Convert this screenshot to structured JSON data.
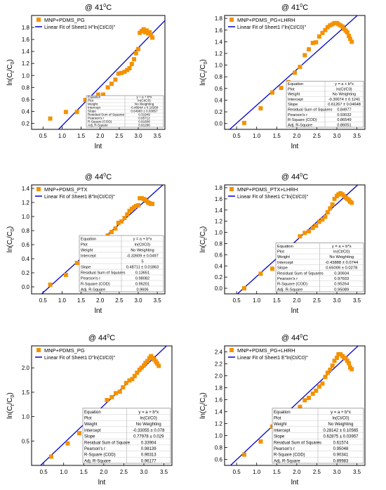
{
  "colors": {
    "marker": "#f39200",
    "fit_line": "#0000cc",
    "axis": "#000000"
  },
  "chart_data": [
    {
      "type": "scatter",
      "title": "@ 41°C",
      "xlabel": "lnt",
      "ylabel": "ln(Ct/C0)",
      "xlim": [
        0.2,
        3.7
      ],
      "ylim": [
        0.1,
        2.0
      ],
      "xticks": [
        0.5,
        1.0,
        1.5,
        2.0,
        2.5,
        3.0,
        3.5
      ],
      "yticks": [
        0.2,
        0.4,
        0.6,
        0.8,
        1.0,
        1.2,
        1.4,
        1.6,
        1.8
      ],
      "legend": [
        "MNP+PDMS_PG",
        "Linear Fit of Sheet1 H\"ln(Ct/C0)\""
      ],
      "fit": {
        "a": -0.48944,
        "b": 0.64983
      },
      "series": [
        {
          "x": [
            0.69,
            1.1,
            1.39,
            1.61,
            1.79,
            1.95,
            2.08,
            2.2,
            2.3,
            2.4,
            2.48,
            2.56,
            2.64,
            2.71,
            2.77,
            2.83,
            2.89,
            2.94,
            3.0,
            3.04,
            3.09,
            3.14,
            3.18,
            3.22,
            3.26,
            3.3,
            3.33,
            3.37
          ],
          "y": [
            0.28,
            0.39,
            0.39,
            0.59,
            0.61,
            0.68,
            0.68,
            0.8,
            0.86,
            0.93,
            1.03,
            1.04,
            1.06,
            1.09,
            1.12,
            1.19,
            1.27,
            1.37,
            1.44,
            1.71,
            1.74,
            1.77,
            1.72,
            1.75,
            1.7,
            1.72,
            1.67,
            1.63
          ]
        }
      ],
      "stats": [
        [
          "Equation",
          "y = a + b*x"
        ],
        [
          "Plot",
          "ln(Ct/C0)"
        ],
        [
          "Weight",
          "No Weighting"
        ],
        [
          "Intercept",
          "-0.48944 ± 0.10268"
        ],
        [
          "Slope",
          "0.64983 ± 0.03857"
        ],
        [
          "Residual Sum of Squares",
          "0.31949"
        ],
        [
          "Pearson's r",
          "0.95712"
        ],
        [
          "R-Square (COD)",
          "0.91608"
        ],
        [
          "Adj. R-Square",
          "0.91286"
        ]
      ]
    },
    {
      "type": "scatter",
      "title": "@ 41°C",
      "xlabel": "lnt",
      "ylabel": "ln(Ct/C0)",
      "xlim": [
        0.2,
        3.7
      ],
      "ylim": [
        -0.1,
        1.85
      ],
      "xticks": [
        0.5,
        1.0,
        1.5,
        2.0,
        2.5,
        3.0,
        3.5
      ],
      "yticks": [
        0.0,
        0.2,
        0.4,
        0.6,
        0.8,
        1.0,
        1.2,
        1.4,
        1.6,
        1.8
      ],
      "legend": [
        "MNP+PDMS_PG+LHRH",
        "Linear Fit of Sheet1 I\"ln(Ct/C0)\""
      ],
      "fit": {
        "a": -0.30074,
        "b": 0.61267
      },
      "series": [
        {
          "x": [
            0.69,
            1.1,
            1.39,
            1.61,
            1.79,
            1.95,
            2.08,
            2.2,
            2.3,
            2.4,
            2.48,
            2.56,
            2.64,
            2.71,
            2.77,
            2.83,
            2.89,
            2.94,
            3.0,
            3.04,
            3.09,
            3.14,
            3.18,
            3.22,
            3.26,
            3.3,
            3.33,
            3.37
          ],
          "y": [
            0.01,
            0.26,
            0.53,
            0.61,
            0.71,
            0.87,
            0.97,
            1.17,
            1.27,
            1.38,
            1.39,
            1.49,
            1.55,
            1.6,
            1.65,
            1.68,
            1.7,
            1.72,
            1.72,
            1.7,
            1.68,
            1.66,
            1.62,
            1.59,
            1.56,
            1.5,
            1.45,
            1.4
          ]
        }
      ],
      "stats": [
        [
          "Equation",
          "y = a + b*x"
        ],
        [
          "Plot",
          "ln(Ct/C0)"
        ],
        [
          "Weight",
          "No Weighting"
        ],
        [
          "Intercept",
          "-0.30074 ± 0.1241"
        ],
        [
          "Slope",
          "0.61267 ± 0.04648"
        ],
        [
          "Residual Sum of Squares",
          "0.84977"
        ],
        [
          "Pearson's r",
          "0.93032"
        ],
        [
          "R-Square (COD)",
          "0.86549"
        ],
        [
          "Adj. R-Square",
          "0.86051"
        ]
      ]
    },
    {
      "type": "scatter",
      "title": "@ 44°C",
      "xlabel": "lnt",
      "ylabel": "ln(Ct/C0)",
      "xlim": [
        0.2,
        3.7
      ],
      "ylim": [
        -0.1,
        1.45
      ],
      "xticks": [
        0.5,
        1.0,
        1.5,
        2.0,
        2.5,
        3.0,
        3.5
      ],
      "yticks": [
        0.0,
        0.2,
        0.4,
        0.6,
        0.8,
        1.0,
        1.2,
        1.4
      ],
      "legend": [
        "MNP+PDMS_PTX",
        "Linear Fit of Sheet1 B\"ln(Ct/C0)\""
      ],
      "fit": {
        "a": -0.32609,
        "b": 0.48711
      },
      "series": [
        {
          "x": [
            0.69,
            1.1,
            1.39,
            1.61,
            1.79,
            1.95,
            2.08,
            2.2,
            2.3,
            2.4,
            2.48,
            2.56,
            2.64,
            2.71,
            2.77,
            2.83,
            2.89,
            2.94,
            3.0,
            3.04,
            3.09,
            3.14,
            3.18,
            3.22,
            3.26,
            3.3,
            3.33,
            3.37
          ],
          "y": [
            0.03,
            0.17,
            0.34,
            0.43,
            0.49,
            0.61,
            0.65,
            0.73,
            0.78,
            0.83,
            0.91,
            0.93,
            0.98,
            1.03,
            1.08,
            1.11,
            1.13,
            1.15,
            1.16,
            1.26,
            1.26,
            1.25,
            1.24,
            1.22,
            1.2,
            1.19,
            1.18,
            1.18
          ]
        }
      ],
      "stats": [
        [
          "Equation",
          "y = a + b*x"
        ],
        [
          "Plot",
          "ln(Ct/C0)"
        ],
        [
          "Weight",
          "No Weighting"
        ],
        [
          "Intercept",
          "-0.32609 ± 0.0497"
        ],
        [
          "",
          "5"
        ],
        [
          "Slope",
          "0.48711 ± 0.01863"
        ],
        [
          "Residual Sum of Squares",
          "0.13651"
        ],
        [
          "Pearson's r",
          "0.98082"
        ],
        [
          "R-Square (COD)",
          "0.96201"
        ],
        [
          "Adj. R-Square",
          "0.9606"
        ]
      ]
    },
    {
      "type": "scatter",
      "title": "@ 44°C",
      "xlabel": "lnt",
      "ylabel": "ln(Ct/C0)",
      "xlim": [
        0.2,
        3.7
      ],
      "ylim": [
        -0.1,
        1.85
      ],
      "xticks": [
        0.5,
        1.0,
        1.5,
        2.0,
        2.5,
        3.0,
        3.5
      ],
      "yticks": [
        0.0,
        0.2,
        0.4,
        0.6,
        0.8,
        1.0,
        1.2,
        1.4,
        1.6,
        1.8
      ],
      "legend": [
        "MNP+PDMS_PTX+LHRH",
        "Linear Fit of Sheet1 C\"ln(Ct/C0)\""
      ],
      "fit": {
        "a": -0.43888,
        "b": 0.65009
      },
      "series": [
        {
          "x": [
            0.69,
            1.1,
            1.39,
            1.61,
            1.79,
            1.95,
            2.08,
            2.2,
            2.3,
            2.4,
            2.48,
            2.56,
            2.64,
            2.71,
            2.77,
            2.83,
            2.89,
            2.94,
            3.0,
            3.04,
            3.09,
            3.14,
            3.18,
            3.22,
            3.26,
            3.3,
            3.33,
            3.37
          ],
          "y": [
            0.0,
            0.26,
            0.35,
            0.57,
            0.64,
            0.78,
            0.93,
            0.99,
            1.02,
            1.08,
            1.12,
            1.19,
            1.23,
            1.28,
            1.36,
            1.43,
            1.5,
            1.6,
            1.65,
            1.68,
            1.7,
            1.68,
            1.65,
            1.62,
            1.6,
            1.58,
            1.55,
            1.53
          ]
        }
      ],
      "stats": [
        [
          "Equation",
          "y = a + b*x"
        ],
        [
          "Plot",
          "ln(Ct/C0)"
        ],
        [
          "Weight",
          "No Weighting"
        ],
        [
          "Intercept",
          "-0.43888 ± 0.0744"
        ],
        [
          "Slope",
          "0.65009 ± 0.0278"
        ],
        [
          "Residual Sum of Squares",
          "0.30604"
        ],
        [
          "Pearson's r",
          "0.97603"
        ],
        [
          "R-Square (COD)",
          "0.95264"
        ],
        [
          "Adj. R-Square",
          "0.95089"
        ]
      ]
    },
    {
      "type": "scatter",
      "title": "@ 44°C",
      "xlabel": "lnt",
      "ylabel": "ln(Ct/C0)",
      "xlim": [
        0.2,
        3.7
      ],
      "ylim": [
        0.0,
        2.45
      ],
      "xticks": [
        0.5,
        1.0,
        1.5,
        2.0,
        2.5,
        3.0,
        3.5
      ],
      "yticks": [
        0.5,
        1.0,
        1.5,
        2.0
      ],
      "legend": [
        "MNP+PDMS_PG",
        "Linear Fit of Sheet1 D\"ln(Ct/C0)\""
      ],
      "fit": {
        "a": -0.33055,
        "b": 0.77978
      },
      "series": [
        {
          "x": [
            0.69,
            1.1,
            1.39,
            1.61,
            1.79,
            1.95,
            2.08,
            2.2,
            2.3,
            2.4,
            2.48,
            2.56,
            2.64,
            2.71,
            2.77,
            2.83,
            2.89,
            2.94,
            3.0,
            3.04,
            3.09,
            3.14,
            3.18,
            3.22,
            3.26,
            3.3,
            3.33,
            3.37
          ],
          "y": [
            0.18,
            0.45,
            0.66,
            0.86,
            0.97,
            1.13,
            1.34,
            1.4,
            1.48,
            1.51,
            1.6,
            1.69,
            1.74,
            1.77,
            1.83,
            1.9,
            1.96,
            2.0,
            2.05,
            2.1,
            2.14,
            2.2,
            2.24,
            2.2,
            2.17,
            2.13,
            2.09,
            2.04
          ]
        }
      ],
      "stats": [
        [
          "Equation",
          "y = a + b*x"
        ],
        [
          "Plot",
          "ln(Ct/C0)"
        ],
        [
          "Weight",
          "No Weighting"
        ],
        [
          "Intercept",
          "-0.33055 ± 0.078"
        ],
        [
          "Slope",
          "0.77978 ± 0.029"
        ],
        [
          "Residual Sum of Square",
          "0.33904"
        ],
        [
          "Pearson's r",
          "0.98139"
        ],
        [
          "R-Square (COD)",
          "0.96313"
        ],
        [
          "Adj. R-Square",
          "0.96177"
        ]
      ]
    },
    {
      "type": "scatter",
      "title": "@ 44°C",
      "xlabel": "lnt",
      "ylabel": "ln(Ct/C0)",
      "xlim": [
        0.2,
        3.7
      ],
      "ylim": [
        0.5,
        2.5
      ],
      "xticks": [
        0.5,
        1.0,
        1.5,
        2.0,
        2.5,
        3.0,
        3.5
      ],
      "yticks": [
        0.6,
        0.8,
        1.0,
        1.2,
        1.4,
        1.6,
        1.8,
        2.0,
        2.2,
        2.4
      ],
      "legend": [
        "MNP+PDMS_PG+LHRH",
        "Linear Fit of Sheet1 E\"ln(Ct/C0)\""
      ],
      "fit": {
        "a": 0.28142,
        "b": 0.62875
      },
      "series": [
        {
          "x": [
            0.69,
            1.1,
            1.39,
            1.61,
            1.79,
            1.95,
            2.08,
            2.2,
            2.3,
            2.4,
            2.48,
            2.56,
            2.64,
            2.71,
            2.77,
            2.83,
            2.89,
            2.94,
            3.0,
            3.04,
            3.09,
            3.14,
            3.18,
            3.22,
            3.26,
            3.3,
            3.33,
            3.37
          ],
          "y": [
            0.68,
            0.9,
            1.15,
            1.28,
            1.3,
            1.42,
            1.48,
            1.59,
            1.63,
            1.7,
            1.75,
            1.82,
            1.87,
            1.98,
            2.05,
            2.1,
            2.17,
            2.25,
            2.3,
            2.36,
            2.36,
            2.33,
            2.3,
            2.29,
            2.25,
            2.21,
            2.14,
            2.11
          ]
        }
      ],
      "stats": [
        [
          "Equation",
          "y = a + b*x"
        ],
        [
          "Plot",
          "ln(Ct/C0)"
        ],
        [
          "Weight",
          "No Weighting"
        ],
        [
          "Intercept",
          "0.28142 ± 0.10565"
        ],
        [
          "Slope",
          "0.62875 ± 0.03957"
        ],
        [
          "Residual Sum of Squares",
          "0.61574"
        ],
        [
          "Pearson's r",
          "0.95048"
        ],
        [
          "R-Square (COD)",
          "0.90341"
        ],
        [
          "Adj. R-Square",
          "0.89983"
        ]
      ]
    }
  ]
}
